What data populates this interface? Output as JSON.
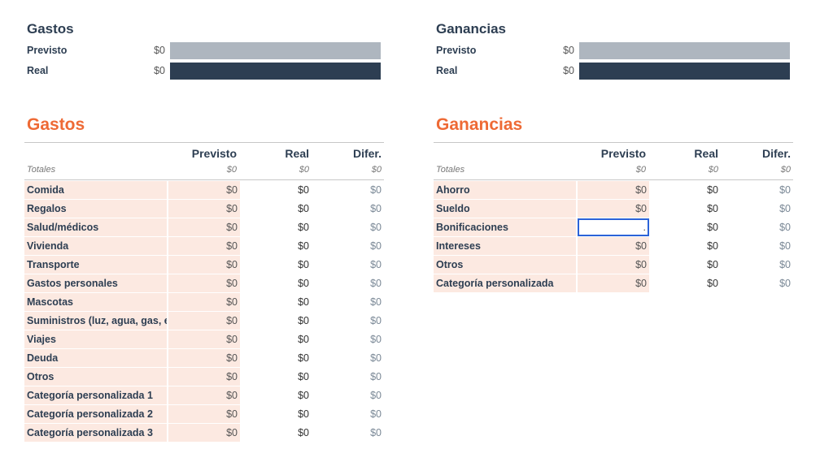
{
  "expenses_summary": {
    "title": "Gastos",
    "planned_label": "Previsto",
    "planned_value": "$0",
    "actual_label": "Real",
    "actual_value": "$0"
  },
  "income_summary": {
    "title": "Ganancias",
    "planned_label": "Previsto",
    "planned_value": "$0",
    "actual_label": "Real",
    "actual_value": "$0"
  },
  "expenses": {
    "title": "Gastos",
    "headers": [
      "Previsto",
      "Real",
      "Difer."
    ],
    "totals": {
      "label": "Totales",
      "planned": "$0",
      "actual": "$0",
      "diff": "$0"
    },
    "rows": [
      {
        "name": "Comida",
        "planned": "$0",
        "actual": "$0",
        "diff": "$0"
      },
      {
        "name": "Regalos",
        "planned": "$0",
        "actual": "$0",
        "diff": "$0"
      },
      {
        "name": "Salud/médicos",
        "planned": "$0",
        "actual": "$0",
        "diff": "$0"
      },
      {
        "name": "Vivienda",
        "planned": "$0",
        "actual": "$0",
        "diff": "$0"
      },
      {
        "name": "Transporte",
        "planned": "$0",
        "actual": "$0",
        "diff": "$0"
      },
      {
        "name": "Gastos personales",
        "planned": "$0",
        "actual": "$0",
        "diff": "$0"
      },
      {
        "name": "Mascotas",
        "planned": "$0",
        "actual": "$0",
        "diff": "$0"
      },
      {
        "name": "Suministros (luz, agua, gas, etc.",
        "planned": "$0",
        "actual": "$0",
        "diff": "$0"
      },
      {
        "name": "Viajes",
        "planned": "$0",
        "actual": "$0",
        "diff": "$0"
      },
      {
        "name": "Deuda",
        "planned": "$0",
        "actual": "$0",
        "diff": "$0"
      },
      {
        "name": "Otros",
        "planned": "$0",
        "actual": "$0",
        "diff": "$0"
      },
      {
        "name": "Categoría personalizada 1",
        "planned": "$0",
        "actual": "$0",
        "diff": "$0"
      },
      {
        "name": "Categoría personalizada 2",
        "planned": "$0",
        "actual": "$0",
        "diff": "$0"
      },
      {
        "name": "Categoría personalizada 3",
        "planned": "$0",
        "actual": "$0",
        "diff": "$0"
      }
    ]
  },
  "income": {
    "title": "Ganancias",
    "headers": [
      "Previsto",
      "Real",
      "Difer."
    ],
    "totals": {
      "label": "Totales",
      "planned": "$0",
      "actual": "$0",
      "diff": "$0"
    },
    "rows": [
      {
        "name": "Ahorro",
        "planned": "$0",
        "actual": "$0",
        "diff": "$0"
      },
      {
        "name": "Sueldo",
        "planned": "$0",
        "actual": "$0",
        "diff": "$0"
      },
      {
        "name": "Bonificaciones",
        "planned": ".",
        "actual": "$0",
        "diff": "$0"
      },
      {
        "name": "Intereses",
        "planned": "$0",
        "actual": "$0",
        "diff": "$0"
      },
      {
        "name": "Otros",
        "planned": "$0",
        "actual": "$0",
        "diff": "$0"
      },
      {
        "name": "Categoría personalizada",
        "planned": "$0",
        "actual": "$0",
        "diff": "$0"
      }
    ],
    "selected_row": 2
  },
  "colors": {
    "accent": "#ee6a35",
    "navy": "#2d3e52",
    "planned_bar": "#aeb6bf",
    "row_fill": "#fce9e1",
    "selection": "#2b63d8"
  }
}
